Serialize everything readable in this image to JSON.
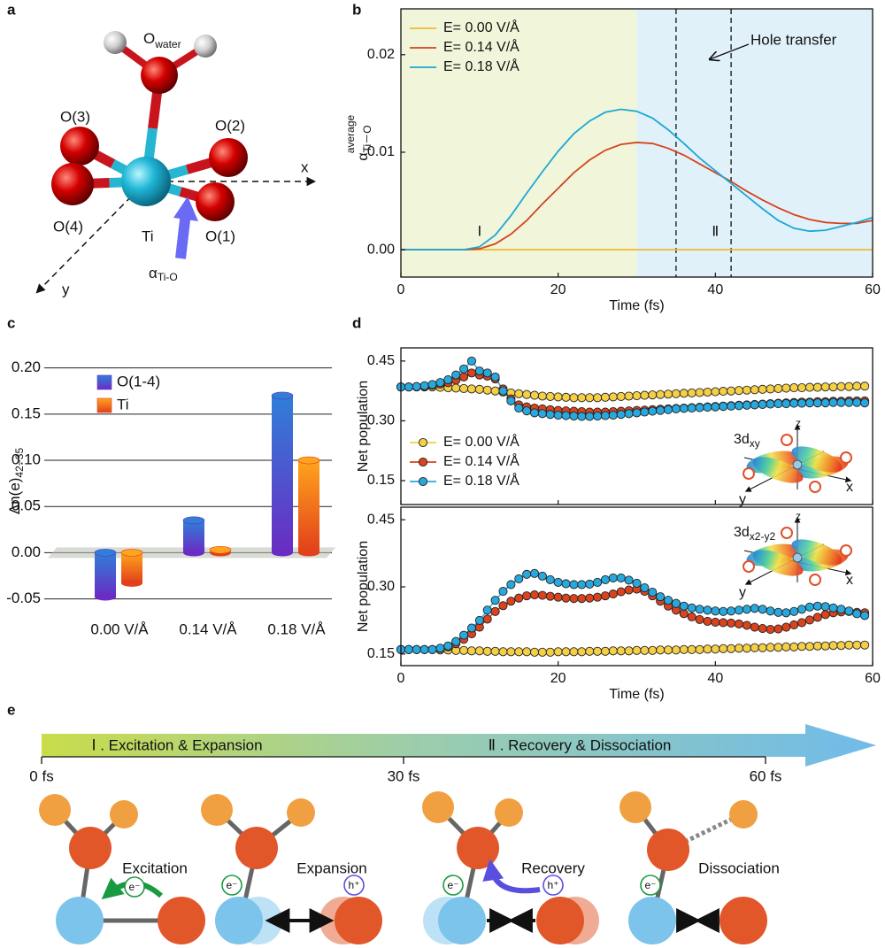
{
  "panel_labels": [
    "a",
    "b",
    "c",
    "d",
    "e"
  ],
  "molecule": {
    "o_water": "O",
    "o_water_sub": "water",
    "atoms": [
      "O(3)",
      "O(2)",
      "O(4)",
      "Ti",
      "O(1)"
    ],
    "axes": [
      "x",
      "y"
    ],
    "alpha": "α",
    "alpha_sub": "Ti-O"
  },
  "chart_data": [
    {
      "type": "line",
      "x": [
        0,
        2,
        4,
        6,
        8,
        10,
        12,
        14,
        16,
        18,
        20,
        22,
        24,
        26,
        28,
        30,
        32,
        34,
        36,
        38,
        40,
        42,
        44,
        46,
        48,
        50,
        52,
        54,
        56,
        58,
        60
      ],
      "series": [
        {
          "name": "E= 0.00 V/Å",
          "color": "#f2b92c",
          "values": [
            0,
            0,
            0,
            0,
            0,
            0,
            0,
            0,
            0,
            0,
            0,
            0,
            0,
            0,
            0,
            0,
            0,
            0,
            0,
            0,
            0,
            0,
            0,
            0,
            0,
            0,
            0,
            0,
            0,
            0,
            0
          ]
        },
        {
          "name": "E= 0.14 V/Å",
          "color": "#d4441c",
          "values": [
            0,
            0,
            0,
            0,
            0,
            0.0001,
            0.0006,
            0.0016,
            0.003,
            0.0047,
            0.0063,
            0.0079,
            0.0092,
            0.0102,
            0.0108,
            0.011,
            0.0109,
            0.0104,
            0.0097,
            0.0088,
            0.0079,
            0.007,
            0.006,
            0.0051,
            0.0043,
            0.0036,
            0.0031,
            0.0028,
            0.0027,
            0.0027,
            0.003
          ]
        },
        {
          "name": "E= 0.18 V/Å",
          "color": "#1ba7d6",
          "values": [
            0,
            0,
            0,
            0,
            0,
            0.0003,
            0.0015,
            0.0035,
            0.0058,
            0.008,
            0.0101,
            0.0119,
            0.0132,
            0.0141,
            0.0144,
            0.0142,
            0.0135,
            0.0123,
            0.0109,
            0.0094,
            0.0081,
            0.0068,
            0.0055,
            0.0042,
            0.003,
            0.0022,
            0.0019,
            0.002,
            0.0024,
            0.0028,
            0.0033
          ]
        }
      ],
      "xlim": [
        0,
        60
      ],
      "ylim": [
        -0.0028,
        0.0247
      ],
      "xticks": [
        0,
        20,
        40,
        60
      ],
      "yticks": [
        {
          "value": 0,
          "label": "0.00"
        },
        {
          "value": 0.01,
          "label": "0.01"
        },
        {
          "value": 0.02,
          "label": "0.02"
        }
      ],
      "xlabel": "Time (fs)",
      "ylabel": "α",
      "ylabel_sub": "Ti－O",
      "ylabel_sup": "average",
      "phases": [
        {
          "label": "Ⅰ",
          "xlim": [
            0,
            30
          ],
          "color": "#f1f6da"
        },
        {
          "label": "Ⅱ",
          "xlim": [
            30,
            60
          ],
          "color": "#e1f1fa"
        }
      ],
      "vlines": [
        35,
        42
      ],
      "annotation": "Hole transfer",
      "legend": "upper left"
    },
    {
      "type": "bar3d",
      "categories": [
        "0.00 V/Å",
        "0.14 V/Å",
        "0.18 V/Å"
      ],
      "series": [
        {
          "name": "O(1-4)",
          "color": "#2f7fd8",
          "color2": "#6a2cc4",
          "values": [
            -0.048,
            0.035,
            0.17
          ]
        },
        {
          "name": "Ti",
          "color": "#ffa41e",
          "color2": "#e2401a",
          "values": [
            -0.033,
            0.003,
            0.1
          ]
        }
      ],
      "ylim": [
        -0.06,
        0.215
      ],
      "yticks": [
        {
          "value": -0.05,
          "label": "-0.05"
        },
        {
          "value": 0,
          "label": "0.00"
        },
        {
          "value": 0.05,
          "label": "0.05"
        },
        {
          "value": 0.1,
          "label": "0.10"
        },
        {
          "value": 0.15,
          "label": "0.15"
        },
        {
          "value": 0.2,
          "label": "0.20"
        }
      ],
      "ylabel": "Δn(e)",
      "ylabel_sub": "42−35",
      "grid": true,
      "legend": "upper left"
    },
    {
      "type": "line-marker",
      "x": [
        0,
        1,
        2,
        3,
        4,
        5,
        6,
        7,
        8,
        9,
        10,
        11,
        12,
        13,
        14,
        15,
        16,
        17,
        18,
        19,
        20,
        21,
        22,
        23,
        24,
        25,
        26,
        27,
        28,
        29,
        30,
        31,
        32,
        33,
        34,
        35,
        36,
        37,
        38,
        39,
        40,
        41,
        42,
        43,
        44,
        45,
        46,
        47,
        48,
        49,
        50,
        51,
        52,
        53,
        54,
        55,
        56,
        57,
        58,
        59
      ],
      "series": [
        {
          "name": "E= 0.00 V/Å",
          "color": "#f5cf45",
          "values": [
            0.385,
            0.385,
            0.385,
            0.385,
            0.385,
            0.384,
            0.383,
            0.382,
            0.381,
            0.38,
            0.379,
            0.377,
            0.375,
            0.372,
            0.37,
            0.368,
            0.366,
            0.364,
            0.362,
            0.361,
            0.36,
            0.359,
            0.358,
            0.358,
            0.358,
            0.358,
            0.359,
            0.36,
            0.361,
            0.362,
            0.363,
            0.364,
            0.365,
            0.366,
            0.367,
            0.368,
            0.369,
            0.37,
            0.371,
            0.372,
            0.373,
            0.374,
            0.375,
            0.376,
            0.377,
            0.378,
            0.379,
            0.38,
            0.381,
            0.382,
            0.383,
            0.383,
            0.384,
            0.384,
            0.385,
            0.385,
            0.386,
            0.386,
            0.387,
            0.387
          ]
        },
        {
          "name": "E= 0.14 V/Å",
          "color": "#d9431e",
          "values": [
            0.385,
            0.385,
            0.386,
            0.387,
            0.389,
            0.392,
            0.396,
            0.402,
            0.41,
            0.42,
            0.415,
            0.412,
            0.405,
            0.38,
            0.355,
            0.34,
            0.335,
            0.332,
            0.33,
            0.328,
            0.326,
            0.325,
            0.324,
            0.323,
            0.322,
            0.322,
            0.322,
            0.323,
            0.324,
            0.325,
            0.326,
            0.327,
            0.328,
            0.329,
            0.33,
            0.331,
            0.332,
            0.333,
            0.334,
            0.335,
            0.336,
            0.337,
            0.338,
            0.339,
            0.34,
            0.341,
            0.342,
            0.343,
            0.344,
            0.345,
            0.346,
            0.347,
            0.347,
            0.348,
            0.348,
            0.349,
            0.349,
            0.35,
            0.35,
            0.35
          ]
        },
        {
          "name": "E= 0.18 V/Å",
          "color": "#29a8dd",
          "values": [
            0.385,
            0.385,
            0.386,
            0.388,
            0.391,
            0.396,
            0.403,
            0.415,
            0.43,
            0.45,
            0.425,
            0.42,
            0.41,
            0.375,
            0.35,
            0.332,
            0.325,
            0.32,
            0.318,
            0.316,
            0.314,
            0.313,
            0.312,
            0.311,
            0.311,
            0.312,
            0.313,
            0.314,
            0.316,
            0.318,
            0.32,
            0.322,
            0.324,
            0.326,
            0.328,
            0.33,
            0.331,
            0.332,
            0.333,
            0.334,
            0.335,
            0.336,
            0.337,
            0.338,
            0.339,
            0.34,
            0.341,
            0.342,
            0.343,
            0.343,
            0.344,
            0.344,
            0.345,
            0.345,
            0.345,
            0.346,
            0.346,
            0.346,
            0.346,
            0.345
          ]
        }
      ],
      "xlim": [
        0,
        60
      ],
      "ylim": [
        0.09,
        0.483
      ],
      "xticks": [
        0,
        20,
        40,
        60
      ],
      "xtick_labels": false,
      "yticks": [
        {
          "value": 0.15,
          "label": "0.15"
        },
        {
          "value": 0.3,
          "label": "0.30"
        },
        {
          "value": 0.45,
          "label": "0.45"
        }
      ],
      "ylabel": "Net population",
      "legend": "lower left",
      "inset": {
        "label": "3d",
        "sub": "xy",
        "axes": [
          "z",
          "x",
          "y"
        ]
      }
    },
    {
      "type": "line-marker",
      "x": [
        0,
        1,
        2,
        3,
        4,
        5,
        6,
        7,
        8,
        9,
        10,
        11,
        12,
        13,
        14,
        15,
        16,
        17,
        18,
        19,
        20,
        21,
        22,
        23,
        24,
        25,
        26,
        27,
        28,
        29,
        30,
        31,
        32,
        33,
        34,
        35,
        36,
        37,
        38,
        39,
        40,
        41,
        42,
        43,
        44,
        45,
        46,
        47,
        48,
        49,
        50,
        51,
        52,
        53,
        54,
        55,
        56,
        57,
        58,
        59
      ],
      "series": [
        {
          "color": "#f5cf45",
          "values": [
            0.16,
            0.16,
            0.16,
            0.16,
            0.16,
            0.159,
            0.159,
            0.158,
            0.158,
            0.157,
            0.157,
            0.156,
            0.156,
            0.155,
            0.155,
            0.155,
            0.155,
            0.154,
            0.154,
            0.154,
            0.155,
            0.155,
            0.155,
            0.155,
            0.156,
            0.156,
            0.156,
            0.157,
            0.157,
            0.157,
            0.158,
            0.158,
            0.158,
            0.159,
            0.159,
            0.159,
            0.16,
            0.16,
            0.16,
            0.161,
            0.161,
            0.162,
            0.162,
            0.163,
            0.163,
            0.164,
            0.164,
            0.165,
            0.165,
            0.166,
            0.166,
            0.167,
            0.167,
            0.168,
            0.168,
            0.169,
            0.169,
            0.17,
            0.17,
            0.17
          ]
        },
        {
          "color": "#d9431e",
          "values": [
            0.16,
            0.16,
            0.16,
            0.16,
            0.16,
            0.162,
            0.166,
            0.173,
            0.183,
            0.195,
            0.21,
            0.228,
            0.245,
            0.258,
            0.268,
            0.275,
            0.28,
            0.282,
            0.281,
            0.279,
            0.277,
            0.275,
            0.274,
            0.274,
            0.275,
            0.277,
            0.28,
            0.284,
            0.289,
            0.293,
            0.295,
            0.29,
            0.28,
            0.268,
            0.257,
            0.248,
            0.24,
            0.233,
            0.227,
            0.223,
            0.221,
            0.22,
            0.219,
            0.217,
            0.214,
            0.21,
            0.207,
            0.205,
            0.206,
            0.21,
            0.215,
            0.22,
            0.226,
            0.232,
            0.238,
            0.242,
            0.244,
            0.245,
            0.243,
            0.242
          ]
        },
        {
          "color": "#29a8dd",
          "values": [
            0.16,
            0.16,
            0.16,
            0.16,
            0.16,
            0.163,
            0.168,
            0.178,
            0.192,
            0.208,
            0.225,
            0.248,
            0.27,
            0.29,
            0.305,
            0.318,
            0.328,
            0.33,
            0.324,
            0.316,
            0.31,
            0.307,
            0.305,
            0.305,
            0.306,
            0.31,
            0.316,
            0.32,
            0.32,
            0.315,
            0.308,
            0.298,
            0.288,
            0.278,
            0.27,
            0.263,
            0.257,
            0.253,
            0.25,
            0.248,
            0.246,
            0.245,
            0.246,
            0.248,
            0.25,
            0.252,
            0.25,
            0.246,
            0.243,
            0.242,
            0.245,
            0.25,
            0.255,
            0.257,
            0.256,
            0.253,
            0.25,
            0.246,
            0.24,
            0.236
          ]
        }
      ],
      "xlim": [
        0,
        60
      ],
      "ylim": [
        0.124,
        0.478
      ],
      "xticks": [
        0,
        20,
        40,
        60
      ],
      "yticks": [
        {
          "value": 0.15,
          "label": "0.15"
        },
        {
          "value": 0.3,
          "label": "0.30"
        },
        {
          "value": 0.45,
          "label": "0.45"
        }
      ],
      "xlabel": "Time (fs)",
      "ylabel": "Net population",
      "inset": {
        "label": "3d",
        "sub": "x2-y2",
        "axes": [
          "z",
          "x",
          "y"
        ]
      }
    }
  ],
  "scheme": {
    "stages": [
      "Ⅰ . Excitation & Expansion",
      "Ⅱ . Recovery & Dissociation"
    ],
    "xlim": [
      0,
      60
    ],
    "ticks": [
      {
        "value": 0,
        "label": "0 fs"
      },
      {
        "value": 30,
        "label": "30 fs"
      },
      {
        "value": 60,
        "label": "60 fs"
      }
    ],
    "steps": [
      "Excitation",
      "Expansion",
      "Recovery",
      "Dissociation"
    ],
    "electron": "e⁻",
    "hole": "h⁺"
  }
}
